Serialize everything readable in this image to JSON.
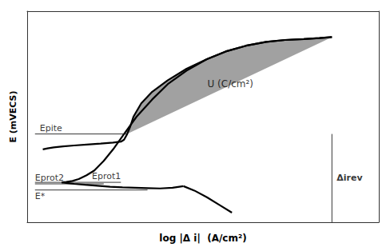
{
  "chart_data": {
    "type": "line",
    "xlabel": "log |Δ i|  (A/cm²)",
    "ylabel": "E (mVECS)",
    "xlim": [
      -0.05,
      2.2
    ],
    "ylim": [
      0.0,
      1.1
    ],
    "tick_labels": false,
    "grid": false,
    "series": [
      {
        "type": "area",
        "color": "#909090",
        "x": [
          0.59,
          0.61,
          0.63,
          0.68,
          0.75,
          0.85,
          0.97,
          1.1,
          1.22,
          1.35,
          1.48,
          1.6,
          1.72,
          1.82,
          1.9,
          0.57,
          0.65,
          0.75,
          0.85,
          0.97,
          1.1,
          1.22,
          1.35,
          1.48,
          1.6,
          1.72,
          1.82,
          1.9
        ],
        "values": [
          0.46,
          0.5,
          0.55,
          0.62,
          0.68,
          0.74,
          0.8,
          0.85,
          0.89,
          0.92,
          0.94,
          0.95,
          0.955,
          0.96,
          0.965,
          0.46,
          0.55,
          0.64,
          0.72,
          0.79,
          0.85,
          0.89,
          0.92,
          0.94,
          0.95,
          0.955,
          0.96,
          0.965
        ]
      },
      {
        "type": "line",
        "color": "#000000",
        "x": [
          0.05,
          0.08,
          0.12,
          0.18,
          0.25,
          0.33,
          0.42,
          0.5,
          0.55,
          0.57,
          0.59,
          0.61,
          0.63,
          0.68,
          0.75,
          0.85,
          0.97,
          1.1,
          1.22,
          1.35,
          1.48,
          1.6,
          1.72,
          1.82,
          1.9
        ],
        "values": [
          0.38,
          0.385,
          0.39,
          0.395,
          0.4,
          0.405,
          0.41,
          0.415,
          0.42,
          0.43,
          0.46,
          0.5,
          0.55,
          0.62,
          0.68,
          0.74,
          0.8,
          0.85,
          0.89,
          0.92,
          0.94,
          0.95,
          0.955,
          0.96,
          0.965
        ]
      },
      {
        "type": "line",
        "color": "#000000",
        "x": [
          1.9,
          1.82,
          1.72,
          1.6,
          1.48,
          1.35,
          1.22,
          1.1,
          0.97,
          0.85,
          0.75,
          0.65,
          0.57,
          0.5,
          0.44,
          0.38,
          0.33,
          0.28,
          0.24,
          0.2,
          0.17
        ],
        "values": [
          0.965,
          0.96,
          0.955,
          0.95,
          0.94,
          0.92,
          0.89,
          0.85,
          0.79,
          0.72,
          0.64,
          0.55,
          0.46,
          0.38,
          0.32,
          0.27,
          0.245,
          0.225,
          0.215,
          0.21,
          0.208
        ]
      },
      {
        "type": "line",
        "color": "#000000",
        "x": [
          0.17,
          0.2,
          0.25,
          0.32,
          0.4,
          0.48,
          0.56,
          0.64,
          0.72,
          0.8,
          0.88,
          0.95
        ],
        "values": [
          0.208,
          0.205,
          0.2,
          0.195,
          0.19,
          0.185,
          0.182,
          0.18,
          0.178,
          0.176,
          0.18,
          0.188
        ]
      },
      {
        "type": "line",
        "color": "#000000",
        "x": [
          0.95,
          1.02,
          1.1,
          1.18,
          1.26
        ],
        "values": [
          0.188,
          0.165,
          0.13,
          0.09,
          0.05
        ]
      }
    ],
    "hlines": [
      {
        "y": 0.46,
        "x": [
          0.0,
          0.59
        ],
        "label": "Epite"
      },
      {
        "y": 0.208,
        "x": [
          0.0,
          0.55
        ],
        "label": "Eprot1"
      },
      {
        "y": 0.2,
        "x": [
          0.0,
          0.44
        ],
        "label": "Eprot2"
      },
      {
        "y": 0.168,
        "x": [
          0.0,
          0.72
        ],
        "label": "E*"
      }
    ],
    "vlines": [
      {
        "x": 1.9,
        "y": [
          0.0,
          0.46
        ],
        "label": "Δirev"
      }
    ],
    "annotations": [
      {
        "text": "U (C/cm²)",
        "x": 1.25,
        "y": 0.72
      }
    ]
  }
}
